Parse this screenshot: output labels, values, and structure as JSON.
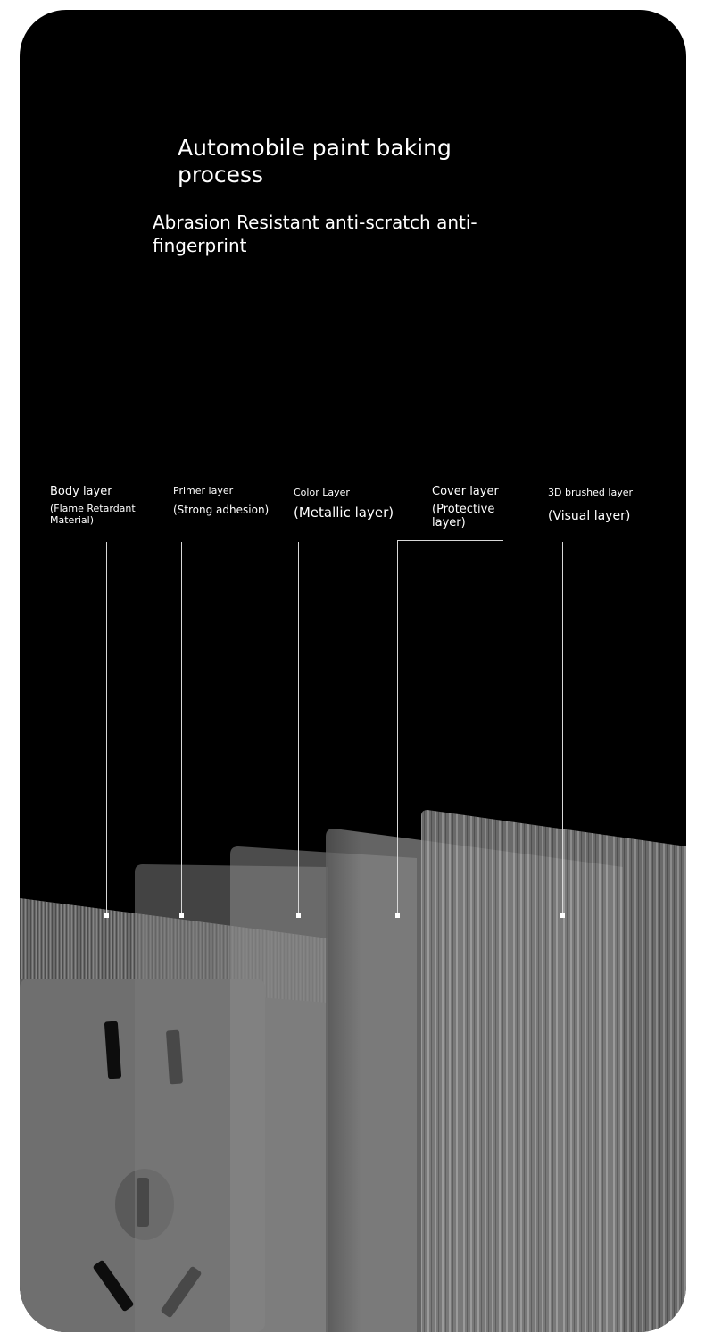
{
  "headline": {
    "title": "Automobile paint baking process",
    "subtitle": "Abrasion Resistant anti-scratch anti-fingerprint"
  },
  "layers": [
    {
      "name": "Body layer",
      "desc": "(Flame Retardant Material)"
    },
    {
      "name": "Primer layer",
      "desc": "(Strong adhesion)"
    },
    {
      "name": "Color Layer",
      "desc": "(Metallic layer)"
    },
    {
      "name": "Cover layer",
      "desc": "(Protective layer)"
    },
    {
      "name": "3D brushed layer",
      "desc": "(Visual layer)"
    }
  ],
  "colors": {
    "background": "#000000",
    "frame": "#ffffff",
    "panel_gray": "#6e6e6e",
    "brushed_gray": "#8a8a8a",
    "text": "#ffffff"
  }
}
